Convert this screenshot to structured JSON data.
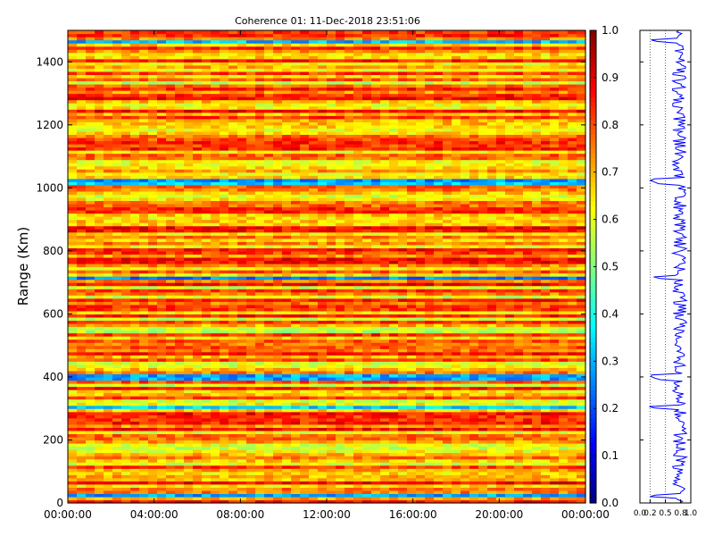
{
  "chart_data": [
    {
      "type": "heatmap",
      "title": "Coherence 01: 11-Dec-2018 23:51:06",
      "xlabel": "",
      "ylabel": "Range (Km)",
      "x_tick_labels": [
        "00:00:00",
        "04:00:00",
        "08:00:00",
        "12:00:00",
        "16:00:00",
        "20:00:00",
        "00:00:00"
      ],
      "y_ticks": [
        0,
        200,
        400,
        600,
        800,
        1000,
        1200,
        1400
      ],
      "ylim": [
        0,
        1500
      ],
      "colormap": "jet",
      "colorbar": {
        "range": [
          0.0,
          1.0
        ],
        "tick_labels": [
          "0.0",
          "0.1",
          "0.2",
          "0.3",
          "0.4",
          "0.5",
          "0.6",
          "0.7",
          "0.8",
          "0.9",
          "1.0"
        ]
      },
      "low_coherence_bands_km": [
        25,
        305,
        400,
        715,
        1020,
        1465
      ],
      "typical_coherence": 0.72
    },
    {
      "type": "line",
      "series_color": "#0000ff",
      "x_tick_labels": [
        "0.0",
        "0.2",
        "0.5",
        "0.8",
        "1.0"
      ],
      "xlim": [
        0,
        1
      ],
      "ylim": [
        0,
        1500
      ]
    }
  ]
}
